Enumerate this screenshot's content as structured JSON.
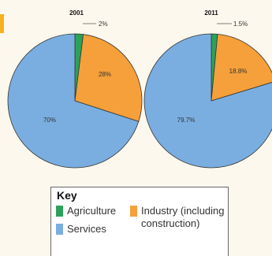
{
  "chart_data": [
    {
      "type": "pie",
      "title": "2001",
      "slices": [
        {
          "label": "Agriculture",
          "value": 2,
          "value_label": "2%",
          "color": "#2ba25a"
        },
        {
          "label": "Industry (including construction)",
          "value": 28,
          "value_label": "28%",
          "color": "#f5a03b"
        },
        {
          "label": "Services",
          "value": 70,
          "value_label": "70%",
          "color": "#7aaee0"
        }
      ]
    },
    {
      "type": "pie",
      "title": "2011",
      "slices": [
        {
          "label": "Agriculture",
          "value": 1.5,
          "value_label": "1.5%",
          "color": "#2ba25a"
        },
        {
          "label": "Industry (including construction)",
          "value": 18.8,
          "value_label": "18.8%",
          "color": "#f5a03b"
        },
        {
          "label": "Services",
          "value": 79.7,
          "value_label": "79.7%",
          "color": "#7aaee0"
        }
      ]
    }
  ],
  "key": {
    "title": "Key",
    "items": [
      {
        "label": "Agriculture",
        "color": "#2ba25a"
      },
      {
        "label": "Industry (including\nconstruction)",
        "color": "#f5a03b"
      },
      {
        "label": "Services",
        "color": "#7aaee0"
      }
    ]
  },
  "colors": {
    "accent_tab": "#f5b31e",
    "slice_stroke": "#333333"
  }
}
